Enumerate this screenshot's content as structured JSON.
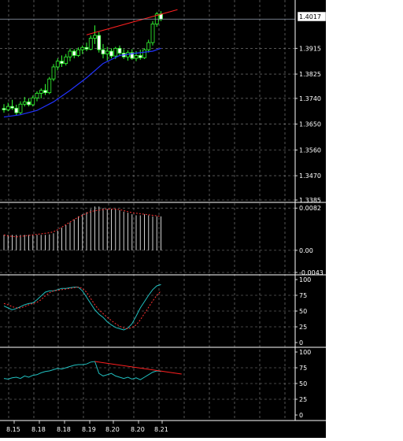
{
  "chart_data": [
    {
      "type": "candlestick",
      "panel": "price",
      "current_price": "1.4017",
      "y_ticks": [
        "1.3915",
        "1.3825",
        "1.3740",
        "1.3650",
        "1.3560",
        "1.3470",
        "1.3385"
      ],
      "ylim": [
        1.3385,
        1.407
      ],
      "candles": [
        {
          "o": 1.3705,
          "h": 1.372,
          "l": 1.369,
          "c": 1.37
        },
        {
          "o": 1.37,
          "h": 1.3725,
          "l": 1.3695,
          "c": 1.3712
        },
        {
          "o": 1.3712,
          "h": 1.3735,
          "l": 1.37,
          "c": 1.3706
        },
        {
          "o": 1.3706,
          "h": 1.3718,
          "l": 1.368,
          "c": 1.369
        },
        {
          "o": 1.369,
          "h": 1.373,
          "l": 1.3685,
          "c": 1.372
        },
        {
          "o": 1.372,
          "h": 1.3745,
          "l": 1.3712,
          "c": 1.3728
        },
        {
          "o": 1.3728,
          "h": 1.374,
          "l": 1.3712,
          "c": 1.3718
        },
        {
          "o": 1.3718,
          "h": 1.375,
          "l": 1.3712,
          "c": 1.3742
        },
        {
          "o": 1.3742,
          "h": 1.3765,
          "l": 1.373,
          "c": 1.3758
        },
        {
          "o": 1.3758,
          "h": 1.3775,
          "l": 1.374,
          "c": 1.3768
        },
        {
          "o": 1.3768,
          "h": 1.379,
          "l": 1.3752,
          "c": 1.376
        },
        {
          "o": 1.376,
          "h": 1.3815,
          "l": 1.3755,
          "c": 1.3808
        },
        {
          "o": 1.3808,
          "h": 1.386,
          "l": 1.38,
          "c": 1.385
        },
        {
          "o": 1.385,
          "h": 1.388,
          "l": 1.3838,
          "c": 1.387
        },
        {
          "o": 1.387,
          "h": 1.389,
          "l": 1.385,
          "c": 1.3862
        },
        {
          "o": 1.3862,
          "h": 1.3895,
          "l": 1.3855,
          "c": 1.3885
        },
        {
          "o": 1.3885,
          "h": 1.3915,
          "l": 1.387,
          "c": 1.3905
        },
        {
          "o": 1.3905,
          "h": 1.3912,
          "l": 1.388,
          "c": 1.389
        },
        {
          "o": 1.389,
          "h": 1.3918,
          "l": 1.3885,
          "c": 1.391
        },
        {
          "o": 1.391,
          "h": 1.3925,
          "l": 1.3895,
          "c": 1.3918
        },
        {
          "o": 1.3918,
          "h": 1.3935,
          "l": 1.3905,
          "c": 1.3912
        },
        {
          "o": 1.3912,
          "h": 1.396,
          "l": 1.3908,
          "c": 1.395
        },
        {
          "o": 1.395,
          "h": 1.3995,
          "l": 1.393,
          "c": 1.396
        },
        {
          "o": 1.396,
          "h": 1.3972,
          "l": 1.39,
          "c": 1.391
        },
        {
          "o": 1.391,
          "h": 1.393,
          "l": 1.388,
          "c": 1.3895
        },
        {
          "o": 1.3895,
          "h": 1.392,
          "l": 1.3872,
          "c": 1.3905
        },
        {
          "o": 1.3905,
          "h": 1.3915,
          "l": 1.388,
          "c": 1.3888
        },
        {
          "o": 1.3888,
          "h": 1.392,
          "l": 1.3878,
          "c": 1.3915
        },
        {
          "o": 1.3915,
          "h": 1.3925,
          "l": 1.389,
          "c": 1.3898
        },
        {
          "o": 1.3898,
          "h": 1.3912,
          "l": 1.3878,
          "c": 1.3885
        },
        {
          "o": 1.3885,
          "h": 1.3908,
          "l": 1.3872,
          "c": 1.39
        },
        {
          "o": 1.39,
          "h": 1.3912,
          "l": 1.3875,
          "c": 1.388
        },
        {
          "o": 1.388,
          "h": 1.3905,
          "l": 1.387,
          "c": 1.389
        },
        {
          "o": 1.389,
          "h": 1.391,
          "l": 1.3875,
          "c": 1.3882
        },
        {
          "o": 1.3882,
          "h": 1.3915,
          "l": 1.3878,
          "c": 1.391
        },
        {
          "o": 1.391,
          "h": 1.3945,
          "l": 1.39,
          "c": 1.3935
        },
        {
          "o": 1.3935,
          "h": 1.401,
          "l": 1.3925,
          "c": 1.4
        },
        {
          "o": 1.4,
          "h": 1.4042,
          "l": 1.399,
          "c": 1.4035
        },
        {
          "o": 1.4035,
          "h": 1.4045,
          "l": 1.401,
          "c": 1.4017
        }
      ],
      "ma_blue": [
        {
          "i": 0,
          "v": 1.3675
        },
        {
          "i": 4,
          "v": 1.3683
        },
        {
          "i": 8,
          "v": 1.3698
        },
        {
          "i": 12,
          "v": 1.3728
        },
        {
          "i": 16,
          "v": 1.3768
        },
        {
          "i": 20,
          "v": 1.3812
        },
        {
          "i": 24,
          "v": 1.3862
        },
        {
          "i": 28,
          "v": 1.389
        },
        {
          "i": 32,
          "v": 1.3898
        },
        {
          "i": 36,
          "v": 1.3905
        },
        {
          "i": 38,
          "v": 1.3915
        }
      ],
      "resistance_line": {
        "from": {
          "i": 20,
          "v": 1.3962
        },
        "to": {
          "i": 42,
          "v": 1.405
        }
      }
    },
    {
      "type": "histogram",
      "panel": "macd",
      "y_ticks": [
        "0.0082",
        "0.00",
        "-0.0043"
      ],
      "ylim": [
        -0.0043,
        0.009
      ],
      "bars": [
        0.003,
        0.003,
        0.003,
        0.003,
        0.003,
        0.003,
        0.003,
        0.003,
        0.003,
        0.003,
        0.003,
        0.0031,
        0.0033,
        0.0038,
        0.0044,
        0.0049,
        0.0054,
        0.006,
        0.0066,
        0.007,
        0.0074,
        0.008,
        0.0085,
        0.0085,
        0.0082,
        0.008,
        0.008,
        0.008,
        0.0078,
        0.0075,
        0.0073,
        0.007,
        0.0068,
        0.0068,
        0.007,
        0.0068,
        0.0066,
        0.0066,
        0.0066
      ],
      "signal": [
        0.003,
        0.0028,
        0.0027,
        0.0026,
        0.0027,
        0.0028,
        0.0029,
        0.003,
        0.0031,
        0.0032,
        0.0033,
        0.0034,
        0.0036,
        0.004,
        0.0045,
        0.005,
        0.0055,
        0.006,
        0.0064,
        0.0068,
        0.0072,
        0.0075,
        0.0077,
        0.0078,
        0.0079,
        0.008,
        0.008,
        0.008,
        0.0079,
        0.0077,
        0.0075,
        0.0073,
        0.0072,
        0.0071,
        0.007,
        0.0069,
        0.0068,
        0.0067,
        0.0066
      ]
    },
    {
      "type": "line",
      "panel": "stochastic",
      "y_ticks": [
        "100",
        "75",
        "50",
        "25",
        "0"
      ],
      "ylim": [
        0,
        100
      ],
      "main": [
        58,
        55,
        52,
        54,
        57,
        60,
        62,
        63,
        68,
        74,
        80,
        82,
        82,
        84,
        86,
        86,
        87,
        88,
        88,
        82,
        72,
        62,
        52,
        45,
        40,
        33,
        28,
        24,
        22,
        20,
        23,
        30,
        42,
        55,
        65,
        75,
        84,
        90,
        92
      ],
      "signal": [
        62,
        60,
        57,
        55,
        55,
        57,
        60,
        62,
        64,
        68,
        74,
        79,
        82,
        83,
        84,
        85,
        86,
        87,
        88,
        86,
        80,
        70,
        60,
        52,
        46,
        40,
        35,
        30,
        26,
        23,
        22,
        24,
        28,
        36,
        46,
        56,
        66,
        75,
        82
      ]
    },
    {
      "type": "line",
      "panel": "rsi",
      "y_ticks": [
        "100",
        "75",
        "50",
        "25",
        "0"
      ],
      "x_ticks": [
        "8.15",
        "8.18",
        "8.18",
        "8.19",
        "8.20",
        "8.20",
        "8.21"
      ],
      "ylim": [
        0,
        100
      ],
      "rsi": [
        58,
        57,
        59,
        60,
        58,
        62,
        60,
        63,
        64,
        67,
        69,
        70,
        72,
        74,
        73,
        75,
        77,
        79,
        80,
        80,
        81,
        84,
        85,
        66,
        62,
        64,
        66,
        62,
        60,
        58,
        60,
        57,
        59,
        56,
        60,
        64,
        68,
        70,
        69
      ],
      "divergence_line": {
        "from": {
          "i": 22,
          "v": 85
        },
        "to": {
          "i": 43,
          "v": 65
        }
      }
    }
  ]
}
